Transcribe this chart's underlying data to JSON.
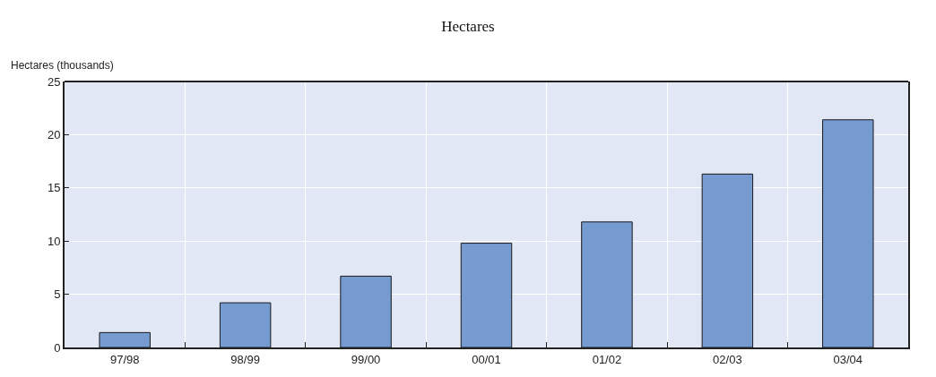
{
  "chart_data": {
    "type": "bar",
    "title": "Hectares",
    "ylabel": "Hectares (thousands)",
    "categories": [
      "97/98",
      "98/99",
      "99/00",
      "00/01",
      "01/02",
      "02/03",
      "03/04"
    ],
    "values": [
      1.4,
      4.2,
      6.7,
      9.8,
      11.8,
      16.3,
      21.4
    ],
    "color": "#759bd1",
    "ylim": [
      0,
      25
    ],
    "yticks": [
      0,
      5,
      10,
      15,
      20,
      25
    ],
    "grid": true
  }
}
